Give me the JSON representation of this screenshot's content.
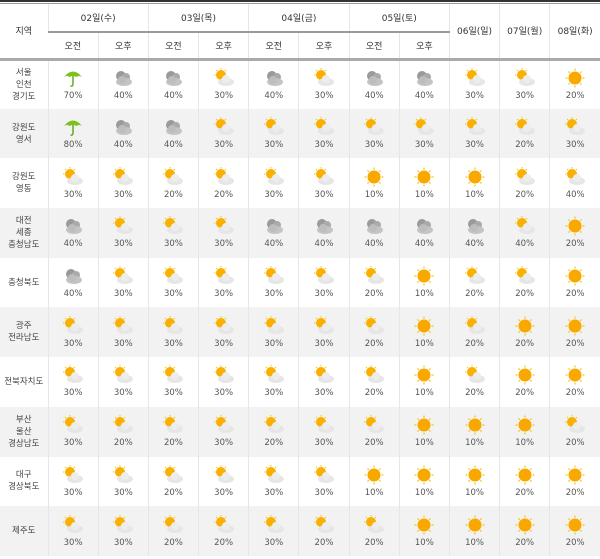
{
  "header": {
    "region": "지역",
    "days": [
      "02일(수)",
      "03일(목)",
      "04일(금)",
      "05일(토)"
    ],
    "single_days": [
      "06일(일)",
      "07일(월)",
      "08일(화)"
    ],
    "am": "오전",
    "pm": "오후"
  },
  "icons": {
    "U": "umbrella-rain-icon",
    "C": "cloudy-icon",
    "P": "partly-sunny-icon",
    "S": "sunny-icon"
  },
  "colors": {
    "sun": "#f9a800",
    "umbrella": "#7cc21e",
    "cloud": "#b8b8b8",
    "alt_row": "#f2f2f2"
  },
  "rows": [
    {
      "region": "서울\n인천\n경기도",
      "cells": [
        [
          "U",
          "70%"
        ],
        [
          "C",
          "40%"
        ],
        [
          "C",
          "40%"
        ],
        [
          "P",
          "30%"
        ],
        [
          "C",
          "40%"
        ],
        [
          "P",
          "30%"
        ],
        [
          "C",
          "40%"
        ],
        [
          "C",
          "40%"
        ],
        [
          "P",
          "30%"
        ],
        [
          "P",
          "30%"
        ],
        [
          "S",
          "20%"
        ]
      ]
    },
    {
      "region": "강원도\n영서",
      "cells": [
        [
          "U",
          "80%"
        ],
        [
          "C",
          "40%"
        ],
        [
          "C",
          "40%"
        ],
        [
          "P",
          "30%"
        ],
        [
          "P",
          "30%"
        ],
        [
          "P",
          "30%"
        ],
        [
          "P",
          "30%"
        ],
        [
          "P",
          "30%"
        ],
        [
          "P",
          "30%"
        ],
        [
          "P",
          "20%"
        ],
        [
          "P",
          "30%"
        ]
      ]
    },
    {
      "region": "강원도\n영동",
      "cells": [
        [
          "P",
          "30%"
        ],
        [
          "P",
          "30%"
        ],
        [
          "P",
          "20%"
        ],
        [
          "P",
          "20%"
        ],
        [
          "P",
          "30%"
        ],
        [
          "P",
          "30%"
        ],
        [
          "S",
          "10%"
        ],
        [
          "S",
          "10%"
        ],
        [
          "S",
          "10%"
        ],
        [
          "P",
          "20%"
        ],
        [
          "P",
          "40%"
        ]
      ]
    },
    {
      "region": "대전\n세종\n충청남도",
      "cells": [
        [
          "C",
          "40%"
        ],
        [
          "P",
          "30%"
        ],
        [
          "P",
          "30%"
        ],
        [
          "P",
          "30%"
        ],
        [
          "C",
          "40%"
        ],
        [
          "C",
          "40%"
        ],
        [
          "C",
          "40%"
        ],
        [
          "C",
          "40%"
        ],
        [
          "C",
          "40%"
        ],
        [
          "P",
          "40%"
        ],
        [
          "S",
          "20%"
        ]
      ]
    },
    {
      "region": "충청북도",
      "cells": [
        [
          "C",
          "40%"
        ],
        [
          "P",
          "30%"
        ],
        [
          "P",
          "30%"
        ],
        [
          "P",
          "30%"
        ],
        [
          "P",
          "30%"
        ],
        [
          "P",
          "30%"
        ],
        [
          "P",
          "20%"
        ],
        [
          "S",
          "10%"
        ],
        [
          "P",
          "20%"
        ],
        [
          "P",
          "20%"
        ],
        [
          "S",
          "20%"
        ]
      ]
    },
    {
      "region": "광주\n전라남도",
      "cells": [
        [
          "P",
          "30%"
        ],
        [
          "P",
          "30%"
        ],
        [
          "P",
          "30%"
        ],
        [
          "P",
          "30%"
        ],
        [
          "P",
          "30%"
        ],
        [
          "P",
          "30%"
        ],
        [
          "P",
          "20%"
        ],
        [
          "S",
          "10%"
        ],
        [
          "P",
          "20%"
        ],
        [
          "S",
          "20%"
        ],
        [
          "S",
          "20%"
        ]
      ]
    },
    {
      "region": "전북자치도",
      "cells": [
        [
          "P",
          "30%"
        ],
        [
          "P",
          "30%"
        ],
        [
          "P",
          "30%"
        ],
        [
          "P",
          "30%"
        ],
        [
          "P",
          "30%"
        ],
        [
          "P",
          "30%"
        ],
        [
          "P",
          "20%"
        ],
        [
          "S",
          "10%"
        ],
        [
          "P",
          "20%"
        ],
        [
          "S",
          "20%"
        ],
        [
          "S",
          "20%"
        ]
      ]
    },
    {
      "region": "부산\n울산\n경상남도",
      "cells": [
        [
          "P",
          "30%"
        ],
        [
          "P",
          "20%"
        ],
        [
          "P",
          "20%"
        ],
        [
          "P",
          "30%"
        ],
        [
          "P",
          "20%"
        ],
        [
          "P",
          "30%"
        ],
        [
          "P",
          "20%"
        ],
        [
          "S",
          "10%"
        ],
        [
          "S",
          "10%"
        ],
        [
          "S",
          "10%"
        ],
        [
          "P",
          "20%"
        ]
      ]
    },
    {
      "region": "대구\n경상북도",
      "cells": [
        [
          "P",
          "30%"
        ],
        [
          "P",
          "30%"
        ],
        [
          "P",
          "20%"
        ],
        [
          "P",
          "30%"
        ],
        [
          "P",
          "30%"
        ],
        [
          "P",
          "30%"
        ],
        [
          "S",
          "10%"
        ],
        [
          "S",
          "10%"
        ],
        [
          "S",
          "10%"
        ],
        [
          "S",
          "20%"
        ],
        [
          "S",
          "20%"
        ]
      ]
    },
    {
      "region": "제주도",
      "cells": [
        [
          "P",
          "30%"
        ],
        [
          "P",
          "30%"
        ],
        [
          "P",
          "20%"
        ],
        [
          "P",
          "20%"
        ],
        [
          "P",
          "30%"
        ],
        [
          "P",
          "20%"
        ],
        [
          "P",
          "20%"
        ],
        [
          "S",
          "10%"
        ],
        [
          "S",
          "10%"
        ],
        [
          "S",
          "20%"
        ],
        [
          "S",
          "20%"
        ]
      ]
    }
  ]
}
